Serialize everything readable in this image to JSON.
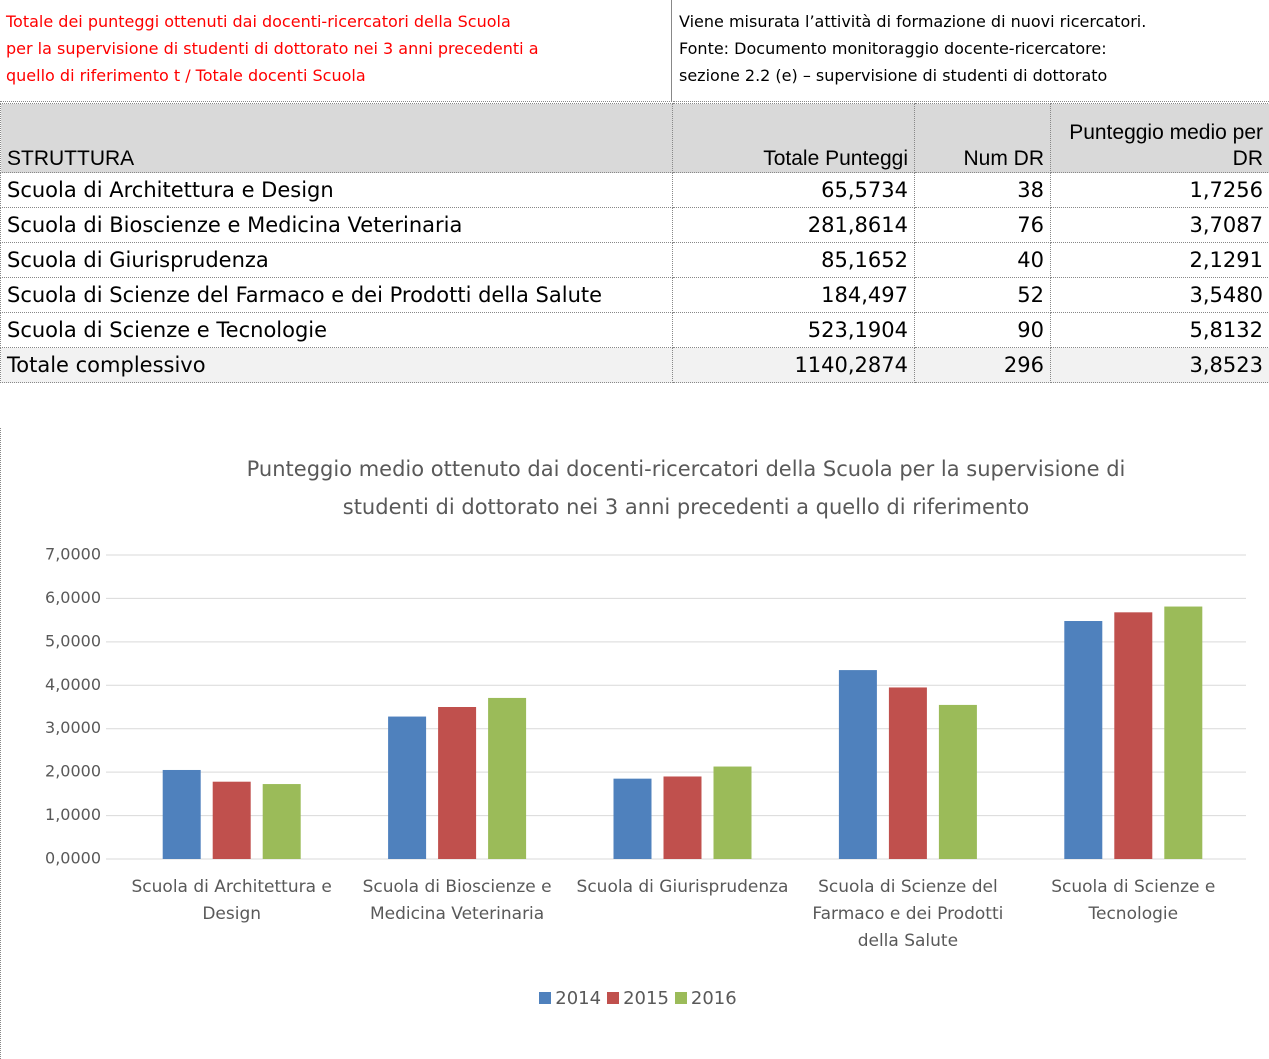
{
  "header": {
    "definition": [
      "Totale dei punteggi ottenuti dai docenti-ricercatori della Scuola",
      "per la supervisione di studenti di dottorato nei 3 anni precedenti a",
      "quello di riferimento t / Totale docenti Scuola"
    ],
    "description": [
      "Viene misurata l’attività di formazione di nuovi ricercatori.",
      "Fonte: Documento monitoraggio docente-ricercatore:",
      "sezione 2.2 (e) – supervisione di studenti di dottorato"
    ]
  },
  "table": {
    "columns": [
      "STRUTTURA",
      "Totale Punteggi",
      "Num DR",
      "Punteggio medio per DR"
    ],
    "rows": [
      [
        "Scuola di Architettura e Design",
        "65,5734",
        "38",
        "1,7256"
      ],
      [
        "Scuola di Bioscienze e Medicina Veterinaria",
        "281,8614",
        "76",
        "3,7087"
      ],
      [
        "Scuola di Giurisprudenza",
        "85,1652",
        "40",
        "2,1291"
      ],
      [
        "Scuola di Scienze del Farmaco e dei Prodotti della Salute",
        "184,497",
        "52",
        "3,5480"
      ],
      [
        "Scuola di Scienze e Tecnologie",
        "523,1904",
        "90",
        "5,8132"
      ]
    ],
    "total": [
      "Totale complessivo",
      "1140,2874",
      "296",
      "3,8523"
    ]
  },
  "chart_data": {
    "type": "bar",
    "title": "Punteggio medio ottenuto dai docenti-ricercatori della Scuola per la supervisione di studenti di dottorato nei 3 anni precedenti a quello di riferimento",
    "categories": [
      "Scuola di Architettura e Design",
      "Scuola di Bioscienze e Medicina Veterinaria",
      "Scuola di Giurisprudenza",
      "Scuola di Scienze del Farmaco e dei Prodotti della Salute",
      "Scuola di Scienze e Tecnologie"
    ],
    "series": [
      {
        "name": "2014",
        "color": "#4f81bd",
        "values": [
          2.05,
          3.28,
          1.85,
          4.35,
          5.48
        ]
      },
      {
        "name": "2015",
        "color": "#c0504d",
        "values": [
          1.78,
          3.5,
          1.9,
          3.95,
          5.68
        ]
      },
      {
        "name": "2016",
        "color": "#9bbb59",
        "values": [
          1.7256,
          3.7087,
          2.1291,
          3.548,
          5.8132
        ]
      }
    ],
    "ylim": [
      0,
      7
    ],
    "yticks": [
      {
        "value": 0,
        "label": "0,0000"
      },
      {
        "value": 1,
        "label": "1,0000"
      },
      {
        "value": 2,
        "label": "2,0000"
      },
      {
        "value": 3,
        "label": "3,0000"
      },
      {
        "value": 4,
        "label": "4,0000"
      },
      {
        "value": 5,
        "label": "5,0000"
      },
      {
        "value": 6,
        "label": "6,0000"
      },
      {
        "value": 7,
        "label": "7,0000"
      }
    ],
    "grid": true,
    "legend": "bottom"
  }
}
